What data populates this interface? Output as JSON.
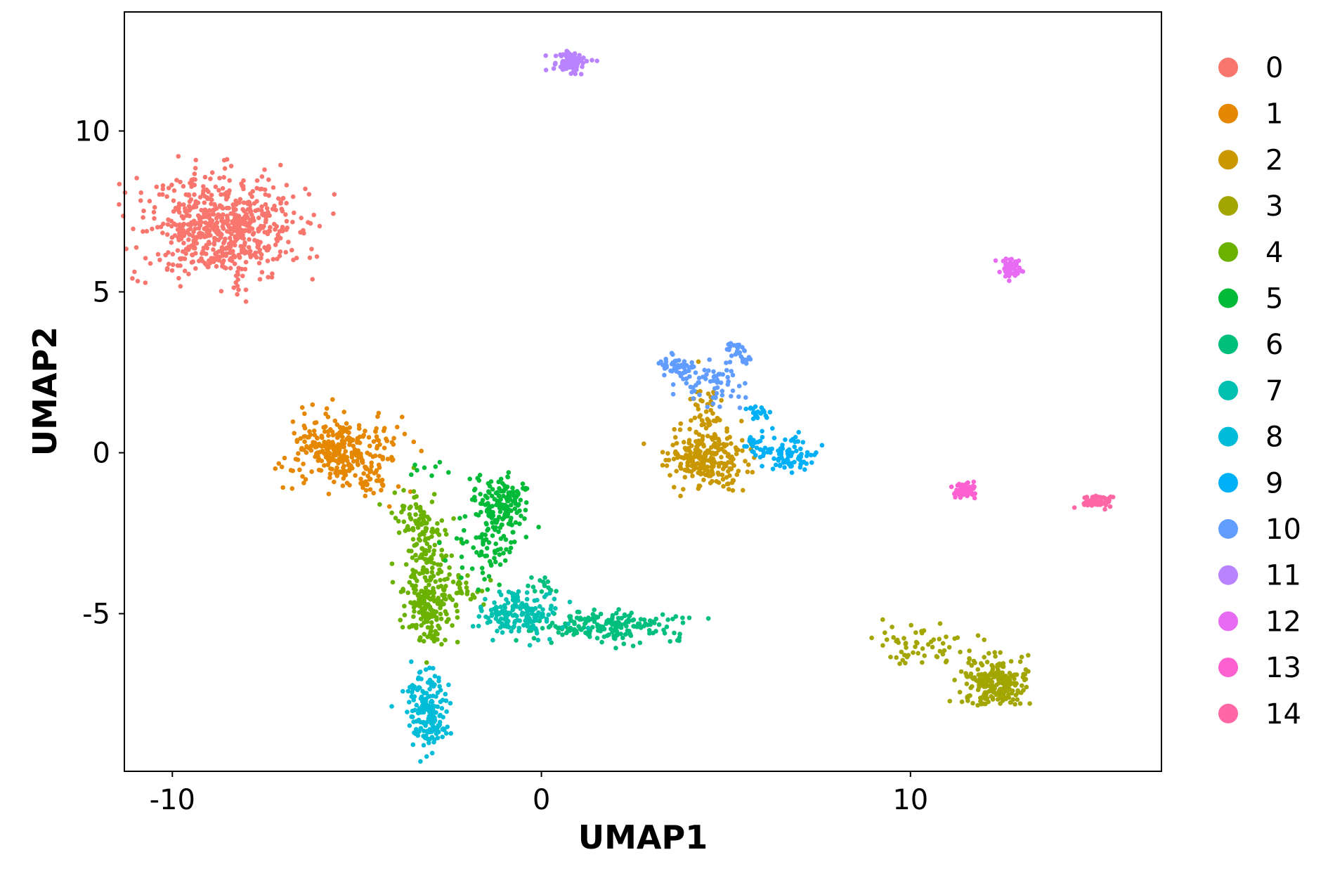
{
  "chart_data": {
    "type": "scatter",
    "title": "",
    "xlabel": "UMAP1",
    "ylabel": "UMAP2",
    "xlim": [
      -11.3,
      16.8
    ],
    "ylim": [
      -9.9,
      13.7
    ],
    "x_ticks": [
      {
        "value": -10,
        "label": "-10"
      },
      {
        "value": 0,
        "label": "0"
      },
      {
        "value": 10,
        "label": "10"
      }
    ],
    "y_ticks": [
      {
        "value": 10,
        "label": "10"
      },
      {
        "value": 5,
        "label": "5"
      },
      {
        "value": 0,
        "label": "0"
      },
      {
        "value": -5,
        "label": "-5"
      }
    ],
    "grid": false,
    "legend_position": "right",
    "point_size": 3.3,
    "series": [
      {
        "name": "0",
        "color": "#F8766D",
        "blobs": [
          [
            -8.7,
            7.0,
            1.05,
            0.8,
            650
          ]
        ]
      },
      {
        "name": "1",
        "color": "#E58700",
        "blobs": [
          [
            -5.5,
            0.1,
            0.7,
            0.5,
            300
          ],
          [
            -4.8,
            -0.8,
            0.4,
            0.3,
            40
          ]
        ]
      },
      {
        "name": "2",
        "color": "#C99800",
        "blobs": [
          [
            4.5,
            -0.2,
            0.55,
            0.45,
            260
          ],
          [
            4.5,
            1.4,
            0.2,
            0.6,
            40
          ]
        ]
      },
      {
        "name": "3",
        "color": "#A3A500",
        "blobs": [
          [
            12.3,
            -7.2,
            0.45,
            0.4,
            230
          ],
          [
            10.5,
            -6.0,
            0.8,
            0.25,
            60
          ]
        ]
      },
      {
        "name": "4",
        "color": "#6BB100",
        "blobs": [
          [
            -3.1,
            -4.8,
            0.35,
            0.6,
            180
          ],
          [
            -3.1,
            -2.9,
            0.3,
            0.7,
            120
          ],
          [
            -3.6,
            -1.8,
            0.3,
            0.3,
            30
          ],
          [
            -2.2,
            -4.3,
            0.4,
            0.25,
            30
          ]
        ]
      },
      {
        "name": "5",
        "color": "#00BA38",
        "blobs": [
          [
            -1.0,
            -1.6,
            0.35,
            0.45,
            150
          ],
          [
            -1.4,
            -3.0,
            0.45,
            0.65,
            80
          ],
          [
            -3.2,
            -0.5,
            0.3,
            0.15,
            8
          ]
        ]
      },
      {
        "name": "6",
        "color": "#00BF7D",
        "blobs": [
          [
            1.9,
            -5.4,
            0.95,
            0.22,
            190
          ],
          [
            0.0,
            -4.2,
            0.3,
            0.3,
            15
          ]
        ]
      },
      {
        "name": "7",
        "color": "#00C0AF",
        "blobs": [
          [
            -0.6,
            -5.0,
            0.55,
            0.35,
            160
          ]
        ]
      },
      {
        "name": "8",
        "color": "#00BCD8",
        "blobs": [
          [
            -3.1,
            -7.9,
            0.28,
            0.55,
            150
          ],
          [
            -2.9,
            -8.6,
            0.15,
            0.15,
            30
          ]
        ]
      },
      {
        "name": "9",
        "color": "#00B0F6",
        "blobs": [
          [
            6.8,
            -0.05,
            0.35,
            0.25,
            80
          ],
          [
            5.9,
            1.3,
            0.2,
            0.12,
            20
          ],
          [
            5.8,
            0.2,
            0.2,
            0.2,
            20
          ]
        ]
      },
      {
        "name": "10",
        "color": "#619CFF",
        "blobs": [
          [
            3.7,
            2.7,
            0.25,
            0.15,
            50
          ],
          [
            5.3,
            3.1,
            0.2,
            0.15,
            30
          ],
          [
            4.5,
            2.1,
            0.55,
            0.35,
            60
          ]
        ]
      },
      {
        "name": "11",
        "color": "#B983FF",
        "blobs": [
          [
            0.8,
            12.1,
            0.25,
            0.15,
            80
          ]
        ]
      },
      {
        "name": "12",
        "color": "#E76BF3",
        "blobs": [
          [
            12.7,
            5.75,
            0.14,
            0.15,
            60
          ]
        ]
      },
      {
        "name": "13",
        "color": "#FD61D1",
        "blobs": [
          [
            11.5,
            -1.2,
            0.15,
            0.12,
            55
          ]
        ]
      },
      {
        "name": "14",
        "color": "#FF67A4",
        "blobs": [
          [
            15.1,
            -1.5,
            0.22,
            0.12,
            60
          ]
        ]
      }
    ]
  }
}
